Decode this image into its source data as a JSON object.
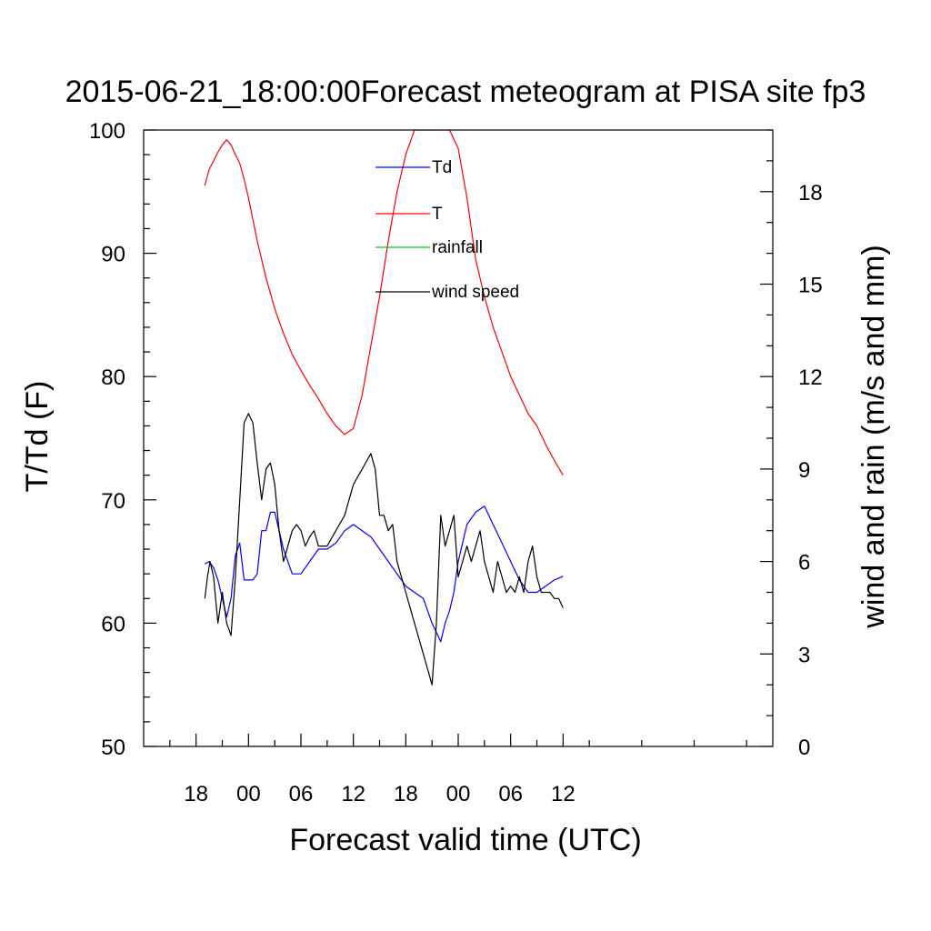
{
  "chart_data": {
    "type": "line",
    "title": "2015-06-21_18:00:00Forecast meteogram at PISA site fp3",
    "xlabel": "Forecast valid time (UTC)",
    "ylabel_left": "T/Td (F)",
    "ylabel_right": "wind and rain (m/s and mm)",
    "x_units": "hours since 2015-06-21 18:00 UTC",
    "xlim": [
      -6,
      66
    ],
    "ylim_left": [
      50,
      100
    ],
    "ylim_right": [
      0,
      20
    ],
    "x_ticks": [
      {
        "x": 0,
        "label": "18"
      },
      {
        "x": 6,
        "label": "00"
      },
      {
        "x": 12,
        "label": "06"
      },
      {
        "x": 18,
        "label": "12"
      },
      {
        "x": 24,
        "label": "18"
      },
      {
        "x": 30,
        "label": "00"
      },
      {
        "x": 36,
        "label": "06"
      },
      {
        "x": 42,
        "label": "12"
      }
    ],
    "y_ticks_left": [
      50,
      60,
      70,
      80,
      90,
      100
    ],
    "y_ticks_right": [
      0,
      3,
      6,
      9,
      12,
      15,
      18
    ],
    "grid": false,
    "legend": [
      {
        "label": "Td",
        "color": "#0000ff"
      },
      {
        "label": "T",
        "color": "#ff0000"
      },
      {
        "label": "rainfall",
        "color": "#00cc00"
      },
      {
        "label": "wind speed",
        "color": "#000000"
      }
    ],
    "series": [
      {
        "name": "T",
        "axis": "left",
        "color": "#ff0000",
        "x": [
          1,
          1.5,
          2,
          2.5,
          3,
          3.5,
          4,
          4.5,
          5,
          5.5,
          6,
          7,
          8,
          9,
          10,
          11,
          12,
          13,
          14,
          15,
          16,
          17,
          18,
          19,
          20,
          21,
          22,
          23,
          24,
          25,
          26,
          27,
          28,
          29,
          30,
          31,
          32,
          33,
          34,
          35,
          36,
          37,
          38,
          39,
          40,
          41,
          42
        ],
        "y": [
          95.5,
          96.8,
          97.5,
          98.2,
          98.8,
          99.2,
          98.8,
          98.0,
          97.3,
          96.0,
          94.5,
          91.0,
          88.0,
          85.5,
          83.5,
          81.8,
          80.5,
          79.3,
          78.2,
          77.0,
          76.0,
          75.3,
          75.8,
          78.5,
          82.5,
          86.5,
          91.0,
          95.0,
          98.0,
          100.0,
          100.0,
          100.0,
          100.0,
          100.0,
          98.5,
          94.5,
          89.5,
          86.5,
          84.0,
          82.0,
          80.0,
          78.5,
          77.0,
          76.0,
          74.5,
          73.2,
          72.0
        ]
      },
      {
        "name": "Td",
        "axis": "left",
        "color": "#0000ff",
        "x": [
          1,
          1.5,
          2,
          2.5,
          3,
          3.5,
          4,
          4.5,
          5,
          5.5,
          6,
          6.5,
          7,
          7.5,
          8,
          8.5,
          9,
          9.5,
          10,
          11,
          12,
          13,
          14,
          15,
          16,
          17,
          18,
          19,
          20,
          21,
          22,
          23,
          24,
          25,
          26,
          27,
          28,
          28.5,
          29,
          29.5,
          30,
          31,
          32,
          33,
          34,
          35,
          36,
          37,
          38,
          39,
          40,
          41,
          42
        ],
        "y": [
          64.8,
          65.0,
          64.5,
          63.5,
          62.0,
          60.5,
          62.0,
          65.5,
          66.5,
          63.5,
          63.5,
          63.5,
          64.0,
          67.5,
          67.5,
          69.0,
          69.0,
          67.5,
          66.0,
          64.0,
          64.0,
          65.0,
          66.0,
          66.0,
          66.5,
          67.5,
          68.0,
          67.5,
          67.0,
          66.0,
          65.0,
          64.0,
          63.0,
          62.5,
          62.0,
          60.0,
          58.5,
          60.0,
          61.0,
          62.5,
          65.0,
          68.0,
          69.0,
          69.5,
          68.0,
          66.5,
          65.0,
          63.5,
          62.5,
          62.5,
          63.0,
          63.5,
          63.8
        ]
      },
      {
        "name": "rainfall",
        "axis": "right",
        "color": "#00cc00",
        "x": [
          1,
          42
        ],
        "y": [
          0,
          0
        ]
      },
      {
        "name": "wind speed",
        "axis": "right",
        "color": "#000000",
        "x": [
          1,
          1.3,
          1.6,
          2,
          2.5,
          3,
          3.5,
          4,
          4.5,
          5,
          5.5,
          6,
          6.5,
          7,
          7.5,
          8,
          8.5,
          9,
          9.5,
          10,
          10.5,
          11,
          11.5,
          12,
          12.5,
          13,
          13.5,
          14,
          14.5,
          15,
          16,
          17,
          18,
          19,
          20,
          20.5,
          21,
          21.5,
          22,
          22.5,
          23,
          23.5,
          24,
          25,
          26,
          27,
          27.5,
          28,
          28.5,
          29,
          29.5,
          30,
          30.5,
          31,
          31.5,
          32,
          32.5,
          33,
          33.5,
          34,
          34.5,
          35,
          35.5,
          36,
          36.5,
          37,
          37.5,
          38,
          38.5,
          39,
          39.5,
          40,
          40.5,
          41,
          41.5,
          42
        ],
        "y": [
          4.8,
          5.5,
          6.0,
          5.5,
          4.0,
          5.0,
          4.0,
          3.6,
          5.5,
          8.0,
          10.5,
          10.8,
          10.5,
          9.2,
          8.0,
          9.0,
          9.2,
          8.5,
          7.0,
          6.0,
          6.5,
          7.0,
          7.2,
          7.0,
          6.5,
          6.8,
          7.0,
          6.5,
          6.5,
          6.5,
          7.0,
          7.5,
          8.5,
          9.0,
          9.5,
          9.0,
          7.5,
          7.5,
          7.0,
          7.2,
          6.0,
          5.5,
          5.0,
          4.0,
          3.0,
          2.0,
          4.0,
          7.5,
          6.5,
          7.0,
          7.5,
          5.5,
          6.0,
          6.5,
          6.0,
          6.5,
          7.0,
          6.0,
          5.5,
          5.0,
          6.0,
          5.5,
          5.0,
          5.2,
          5.0,
          5.5,
          5.0,
          6.0,
          6.5,
          5.5,
          5.0,
          5.0,
          5.0,
          4.8,
          4.8,
          4.5
        ]
      }
    ]
  }
}
